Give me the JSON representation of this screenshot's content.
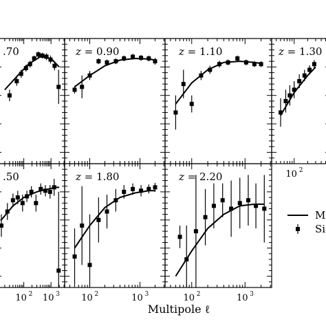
{
  "figure": {
    "xlabel": "Multipole ℓ",
    "legend": {
      "model_label": "M",
      "sim_label": "Si"
    },
    "x_tick_labels": {
      "e2": "10",
      "e3": "10",
      "exp2": "2",
      "exp3": "3"
    }
  },
  "chart_data": [
    {
      "type": "line",
      "panel_label": ".70",
      "x": [
        30,
        55,
        80,
        120,
        170,
        240,
        340,
        480,
        680,
        960,
        1350,
        1900
      ],
      "y": [
        0.2,
        0.45,
        0.58,
        0.68,
        0.75,
        0.85,
        0.92,
        0.9,
        0.88,
        0.83,
        0.72,
        0.35
      ],
      "yerr": [
        0.1,
        0.08,
        0.07,
        0.06,
        0.06,
        0.05,
        0.05,
        0.05,
        0.06,
        0.07,
        0.08,
        0.3
      ],
      "model": {
        "x": [
          20,
          60,
          150,
          400,
          1000,
          2000
        ],
        "y": [
          0.3,
          0.55,
          0.75,
          0.88,
          0.85,
          0.7
        ]
      }
    },
    {
      "type": "line",
      "panel_label": "0.90",
      "x": [
        50,
        70,
        100,
        150,
        220,
        330,
        480,
        720,
        1050,
        1500,
        2000
      ],
      "y": [
        0.3,
        0.35,
        0.55,
        0.8,
        0.78,
        0.8,
        0.85,
        0.88,
        0.86,
        0.85,
        0.8
      ],
      "yerr": [
        0.07,
        0.2,
        0.08,
        0.05,
        0.05,
        0.05,
        0.05,
        0.05,
        0.05,
        0.05,
        0.06
      ],
      "model": {
        "x": [
          50,
          100,
          200,
          400,
          800,
          1500,
          2000
        ],
        "y": [
          0.35,
          0.55,
          0.72,
          0.82,
          0.85,
          0.84,
          0.82
        ]
      }
    },
    {
      "type": "line",
      "panel_label": "1.10",
      "x": [
        50,
        70,
        100,
        150,
        220,
        330,
        480,
        720,
        1050,
        1500,
        2000
      ],
      "y": [
        -0.1,
        0.4,
        0.05,
        0.55,
        0.65,
        0.75,
        0.78,
        0.85,
        0.78,
        0.75,
        0.75
      ],
      "yerr": [
        0.3,
        0.25,
        0.15,
        0.08,
        0.07,
        0.06,
        0.05,
        0.05,
        0.05,
        0.05,
        0.05
      ],
      "model": {
        "x": [
          50,
          100,
          200,
          400,
          800,
          1500,
          2000
        ],
        "y": [
          0.05,
          0.42,
          0.65,
          0.78,
          0.8,
          0.78,
          0.76
        ]
      }
    },
    {
      "type": "line",
      "panel_label": "1.30",
      "x": [
        50,
        65,
        80,
        100,
        130,
        170,
        220,
        280
      ],
      "y": [
        -0.1,
        0.1,
        0.2,
        0.3,
        0.45,
        0.55,
        0.65,
        0.75
      ],
      "yerr": [
        0.25,
        0.2,
        0.18,
        0.15,
        0.12,
        0.1,
        0.08,
        0.07
      ],
      "model": {
        "x": [
          50,
          100,
          200,
          300
        ],
        "y": [
          -0.15,
          0.25,
          0.55,
          0.7
        ]
      }
    },
    {
      "type": "line",
      "panel_label": ".50",
      "x": [
        15,
        25,
        40,
        60,
        90,
        130,
        190,
        280,
        420,
        620,
        920,
        1300,
        1900
      ],
      "y": [
        0.1,
        0.35,
        0.55,
        0.6,
        0.5,
        0.62,
        0.7,
        0.5,
        0.75,
        0.72,
        0.7,
        0.78,
        -0.7
      ],
      "yerr": [
        0.2,
        0.15,
        0.12,
        0.12,
        0.15,
        0.1,
        0.1,
        0.15,
        0.1,
        0.1,
        0.12,
        0.15,
        1.4
      ],
      "model": {
        "x": [
          15,
          40,
          100,
          300,
          800,
          1500,
          2000
        ],
        "y": [
          0.2,
          0.45,
          0.6,
          0.7,
          0.75,
          0.78,
          0.78
        ]
      }
    },
    {
      "type": "line",
      "panel_label": "1.80",
      "x": [
        50,
        70,
        100,
        150,
        220,
        330,
        480,
        720,
        1050,
        1500,
        2000
      ],
      "y": [
        -0.45,
        0.1,
        -0.6,
        0.2,
        0.35,
        0.55,
        0.7,
        0.75,
        0.72,
        0.75,
        0.78
      ],
      "yerr": [
        0.5,
        0.7,
        0.9,
        0.4,
        0.3,
        0.2,
        0.12,
        0.1,
        0.1,
        0.08,
        0.08
      ],
      "model": {
        "x": [
          50,
          100,
          200,
          400,
          800,
          1500,
          2000
        ],
        "y": [
          -0.3,
          0.1,
          0.42,
          0.6,
          0.68,
          0.72,
          0.72
        ]
      }
    },
    {
      "type": "line",
      "panel_label": "2.20",
      "x": [
        60,
        80,
        120,
        180,
        260,
        380,
        550,
        800,
        1150,
        1600,
        2300
      ],
      "y": [
        -0.1,
        -0.5,
        0.0,
        0.25,
        0.45,
        0.55,
        0.4,
        0.5,
        0.55,
        0.45,
        0.4
      ],
      "yerr": [
        0.2,
        0.6,
        1.0,
        0.5,
        0.4,
        0.3,
        0.5,
        0.45,
        0.45,
        0.4,
        0.6
      ],
      "model": {
        "x": [
          50,
          100,
          200,
          400,
          800,
          1500,
          2300
        ],
        "y": [
          -0.8,
          -0.35,
          0.05,
          0.3,
          0.45,
          0.48,
          0.48
        ]
      }
    }
  ]
}
